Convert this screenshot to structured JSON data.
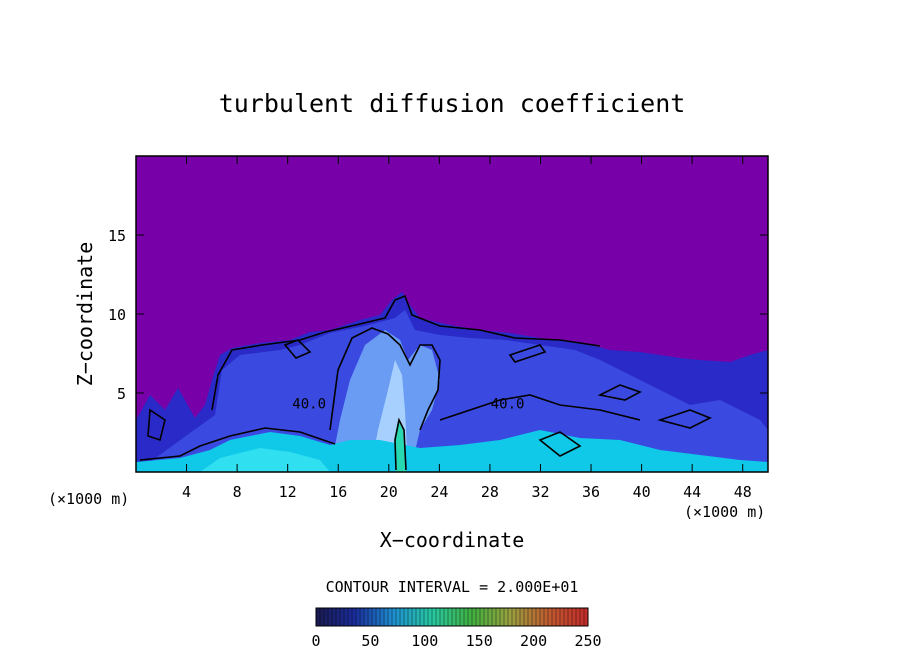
{
  "chart_data": {
    "type": "heatmap",
    "title": "turbulent diffusion coefficient",
    "xlabel": "X−coordinate",
    "ylabel": "Z−coordinate",
    "x_unit_left": "(×1000 m)",
    "x_unit_right": "(×1000 m)",
    "xlim": [
      0,
      50
    ],
    "ylim": [
      0,
      20
    ],
    "x_ticks": [
      4,
      8,
      12,
      16,
      20,
      24,
      28,
      32,
      36,
      40,
      44,
      48
    ],
    "y_ticks": [
      5,
      10,
      15
    ],
    "contour_interval_text": "CONTOUR INTERVAL = 2.000E+01",
    "contour_labels": [
      {
        "text": "40.0",
        "x": 13.7,
        "z": 4.4
      },
      {
        "text": "40.0",
        "x": 29.4,
        "z": 4.4
      }
    ],
    "colorbar": {
      "min": 0,
      "max": 250,
      "ticks": [
        0,
        50,
        100,
        150,
        200,
        250
      ],
      "colors": [
        "#1a1a50",
        "#1a2c9a",
        "#1e90d0",
        "#28c8a0",
        "#40b040",
        "#9aa040",
        "#c05a30",
        "#c02a2a"
      ]
    },
    "colors": {
      "background_field": "#7800a8",
      "anvil": "#3a4ae0",
      "core": "#8ab8ff",
      "near_surface": "#10c8e8"
    }
  }
}
